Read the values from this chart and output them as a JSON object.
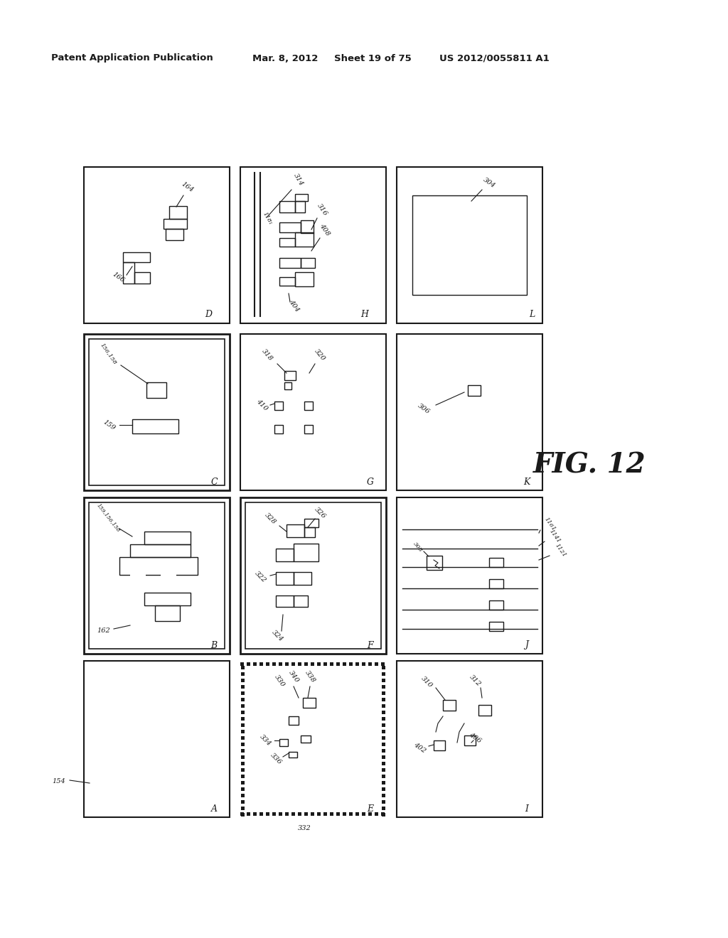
{
  "bg_color": "#ffffff",
  "header_text": "Patent Application Publication",
  "header_date": "Mar. 8, 2012",
  "header_sheet": "Sheet 19 of 75",
  "header_patent": "US 2012/0055811 A1",
  "fig_label": "FIG. 12",
  "dark": "#1a1a1a"
}
